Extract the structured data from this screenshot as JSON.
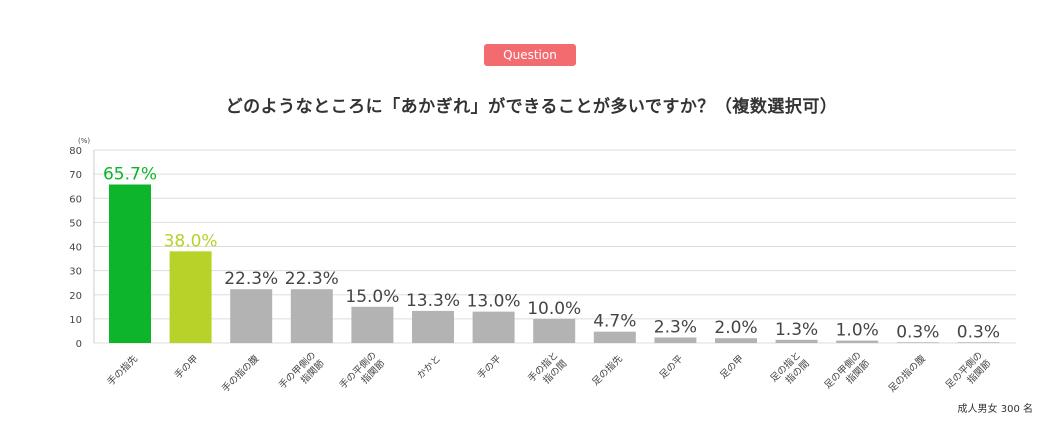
{
  "badge": "Question",
  "title": "どのようなところに「あかぎれ」ができることが多いですか？（複数選択可）",
  "note": "成人男女 300 名",
  "colors": {
    "badge": "#f26b6f",
    "first": "#0db52a",
    "second": "#b8d22a",
    "rest": "#b3b3b3",
    "grid": "#dddddd"
  },
  "chart_data": {
    "type": "bar",
    "y_unit": "(%)",
    "ylim": [
      0,
      80
    ],
    "yticks": [
      0,
      10,
      20,
      30,
      40,
      50,
      60,
      70,
      80
    ],
    "grid": true,
    "categories": [
      "手の指先",
      "手の甲",
      "手の指の腹",
      "手の甲側の指関節",
      "手の平側の指関節",
      "かかと",
      "手の平",
      "手の指と指の間",
      "足の指先",
      "足の平",
      "足の甲",
      "足の指と指の間",
      "足の甲側の指関節",
      "足の指の腹",
      "足の平側の指関節"
    ],
    "category_lines": [
      [
        "手の指先"
      ],
      [
        "手の甲"
      ],
      [
        "手の指の腹"
      ],
      [
        "手の甲側の",
        "指関節"
      ],
      [
        "手の平側の",
        "指関節"
      ],
      [
        "かかと"
      ],
      [
        "手の平"
      ],
      [
        "手の指と",
        "指の間"
      ],
      [
        "足の指先"
      ],
      [
        "足の平"
      ],
      [
        "足の甲"
      ],
      [
        "足の指と",
        "指の間"
      ],
      [
        "足の甲側の",
        "指関節"
      ],
      [
        "足の指の腹"
      ],
      [
        "足の平側の",
        "指関節"
      ]
    ],
    "values": [
      65.7,
      38.0,
      22.3,
      22.3,
      15.0,
      13.3,
      13.0,
      10.0,
      4.7,
      2.3,
      2.0,
      1.3,
      1.0,
      0.3,
      0.3
    ],
    "data_labels": [
      "65.7%",
      "38.0%",
      "22.3%",
      "22.3%",
      "15.0%",
      "13.3%",
      "13.0%",
      "10.0%",
      "4.7%",
      "2.3%",
      "2.0%",
      "1.3%",
      "1.0%",
      "0.3%",
      "0.3%"
    ]
  }
}
